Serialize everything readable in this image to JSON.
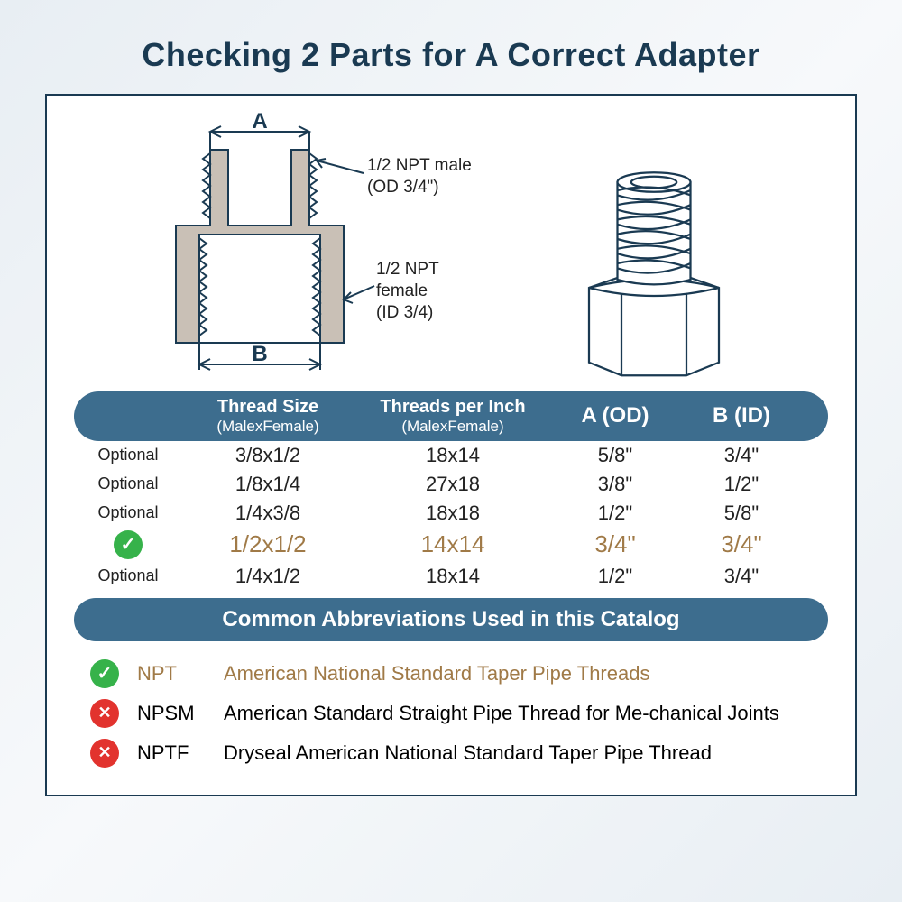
{
  "title": "Checking 2 Parts for A Correct Adapter",
  "colors": {
    "title": "#1a3a52",
    "panel_border": "#1a3a52",
    "header_bg": "#3d6d8e",
    "header_fg": "#ffffff",
    "row_fg": "#222222",
    "highlight_fg": "#a07a47",
    "check_bg": "#36b24a",
    "x_bg": "#e2332e",
    "diagram_stroke": "#1a3a52",
    "diagram_fill": "#c9c0b6"
  },
  "diagram": {
    "dim_a_label": "A",
    "dim_b_label": "B",
    "male_label_l1": "1/2 NPT male",
    "male_label_l2": "(OD 3/4\")",
    "female_label_l1": "1/2 NPT",
    "female_label_l2": "female",
    "female_label_l3": "(ID 3/4)"
  },
  "table": {
    "headers": {
      "status": "",
      "thread_size_l1": "Thread Size",
      "thread_size_l2": "(MalexFemale)",
      "tpi_l1": "Threads per Inch",
      "tpi_l2": "(MalexFemale)",
      "a": "A (OD)",
      "b": "B (ID)"
    },
    "rows": [
      {
        "status": "optional",
        "thread_size": "3/8x1/2",
        "tpi": "18x14",
        "a": "5/8\"",
        "b": "3/4\""
      },
      {
        "status": "optional",
        "thread_size": "1/8x1/4",
        "tpi": "27x18",
        "a": "3/8\"",
        "b": "1/2\""
      },
      {
        "status": "optional",
        "thread_size": "1/4x3/8",
        "tpi": "18x18",
        "a": "1/2\"",
        "b": "5/8\""
      },
      {
        "status": "check",
        "thread_size": "1/2x1/2",
        "tpi": "14x14",
        "a": "3/4\"",
        "b": "3/4\""
      },
      {
        "status": "optional",
        "thread_size": "1/4x1/2",
        "tpi": "18x14",
        "a": "1/2\"",
        "b": "3/4\""
      }
    ],
    "optional_label": "Optional"
  },
  "abbr_header": "Common Abbreviations Used in this Catalog",
  "abbreviations": [
    {
      "status": "check",
      "code": "NPT",
      "desc": "American National Standard Taper Pipe Threads",
      "highlight": true
    },
    {
      "status": "x",
      "code": "NPSM",
      "desc": "American Standard Straight Pipe Thread for Me-chanical Joints",
      "highlight": false
    },
    {
      "status": "x",
      "code": "NPTF",
      "desc": "Dryseal American National Standard Taper Pipe Thread",
      "highlight": false
    }
  ]
}
